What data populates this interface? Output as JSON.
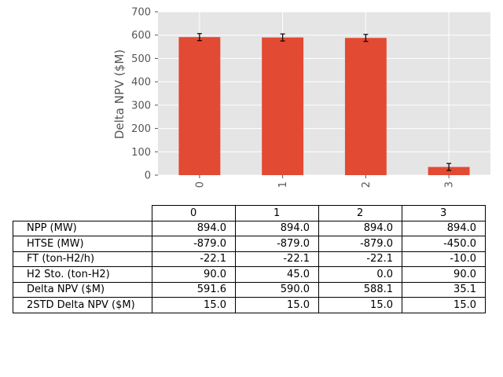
{
  "chart_data": {
    "type": "bar",
    "categories": [
      "0",
      "1",
      "2",
      "3"
    ],
    "values": [
      591.6,
      590.0,
      588.1,
      35.1
    ],
    "errors": [
      15.0,
      15.0,
      15.0,
      15.0
    ],
    "ylabel": "Delta NPV ($M)",
    "xlabel": "",
    "ylim": [
      0,
      700
    ],
    "yticks": [
      "0",
      "100",
      "200",
      "300",
      "400",
      "500",
      "600",
      "700"
    ],
    "grid": true,
    "colors": {
      "bar": "#E24A33",
      "background": "#E5E5E5",
      "grid": "#FFFFFF",
      "tick": "#555555"
    }
  },
  "table": {
    "columns": [
      "0",
      "1",
      "2",
      "3"
    ],
    "rows": [
      {
        "label": "NPP (MW)",
        "values": [
          "894.0",
          "894.0",
          "894.0",
          "894.0"
        ]
      },
      {
        "label": "HTSE (MW)",
        "values": [
          "-879.0",
          "-879.0",
          "-879.0",
          "-450.0"
        ]
      },
      {
        "label": "FT (ton-H2/h)",
        "values": [
          "-22.1",
          "-22.1",
          "-22.1",
          "-10.0"
        ]
      },
      {
        "label": "H2 Sto. (ton-H2)",
        "values": [
          "90.0",
          "45.0",
          "0.0",
          "90.0"
        ]
      },
      {
        "label": "Delta NPV ($M)",
        "values": [
          "591.6",
          "590.0",
          "588.1",
          "35.1"
        ]
      },
      {
        "label": "2STD Delta NPV ($M)",
        "values": [
          "15.0",
          "15.0",
          "15.0",
          "15.0"
        ]
      }
    ]
  }
}
